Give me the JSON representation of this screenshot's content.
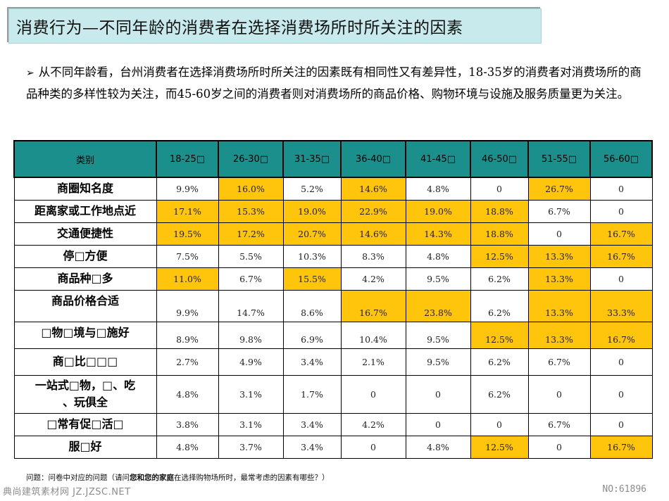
{
  "title": "消费行为—不同年龄的消费者在选择消费场所时所关注的因素",
  "summary": {
    "bullet": "➢",
    "text": "从不同年龄看，台州消费者在选择消费场所时所关注的因素既有相同性又有差异性，18-35岁的消费者对消费场所的商品种类的多样性较为关注，而45-60岁之间的消费者则对消费场所的商品价格、购物环境与设施及服务质量更为关注。"
  },
  "table": {
    "header": {
      "category": "类别",
      "age_groups": [
        "18-25□",
        "26-30□",
        "31-35□",
        "36-40□",
        "41-45□",
        "46-50□",
        "51-55□",
        "56-60□"
      ]
    },
    "rows": [
      {
        "label": "商圈知名度",
        "values": [
          "9.9%",
          "16.0%",
          "5.2%",
          "14.6%",
          "4.8%",
          "0",
          "26.7%",
          "0"
        ],
        "highlight": [
          false,
          true,
          false,
          true,
          false,
          false,
          true,
          false
        ]
      },
      {
        "label": "距离家或工作地点近",
        "values": [
          "17.1%",
          "15.3%",
          "19.0%",
          "22.9%",
          "19.0%",
          "18.8%",
          "6.7%",
          "0"
        ],
        "highlight": [
          true,
          true,
          true,
          true,
          true,
          true,
          false,
          false
        ]
      },
      {
        "label": "交通便捷性",
        "values": [
          "19.5%",
          "17.2%",
          "20.7%",
          "14.6%",
          "14.3%",
          "18.8%",
          "0",
          "16.7%"
        ],
        "highlight": [
          true,
          true,
          true,
          true,
          true,
          true,
          false,
          true
        ]
      },
      {
        "label": "停□方便",
        "values": [
          "7.5%",
          "5.5%",
          "10.3%",
          "8.3%",
          "4.8%",
          "12.5%",
          "13.3%",
          "16.7%"
        ],
        "highlight": [
          false,
          false,
          false,
          false,
          false,
          true,
          true,
          true
        ]
      },
      {
        "label": "商品种□多",
        "values": [
          "11.0%",
          "6.7%",
          "15.5%",
          "4.2%",
          "9.5%",
          "6.2%",
          "13.3%",
          "0"
        ],
        "highlight": [
          true,
          false,
          true,
          false,
          false,
          false,
          true,
          false
        ]
      },
      {
        "label": "商品价格合适",
        "values": [
          "9.9%",
          "14.7%",
          "8.6%",
          "16.7%",
          "23.8%",
          "6.2%",
          "13.3%",
          "33.3%"
        ],
        "highlight": [
          false,
          false,
          false,
          true,
          true,
          false,
          true,
          true
        ]
      },
      {
        "label": "□物□境与□施好",
        "values": [
          "8.9%",
          "9.8%",
          "6.9%",
          "10.4%",
          "9.5%",
          "12.5%",
          "13.3%",
          "16.7%"
        ],
        "highlight": [
          false,
          false,
          false,
          false,
          false,
          true,
          true,
          true
        ]
      },
      {
        "label": "商□比□□□",
        "values": [
          "2.7%",
          "4.9%",
          "3.4%",
          "2.1%",
          "9.5%",
          "6.2%",
          "6.7%",
          "0"
        ],
        "highlight": [
          false,
          false,
          false,
          false,
          false,
          false,
          false,
          false
        ]
      },
      {
        "label": "一站式□物，□、吃、玩俱全",
        "label_lines": [
          "一站式□物，□、吃",
          "、玩俱全"
        ],
        "values": [
          "4.8%",
          "3.1%",
          "1.7%",
          "0",
          "0",
          "6.2%",
          "0",
          "0"
        ],
        "highlight": [
          false,
          false,
          false,
          false,
          false,
          false,
          false,
          false
        ]
      },
      {
        "label": "□常有促□活□",
        "values": [
          "3.8%",
          "3.1%",
          "3.4%",
          "4.2%",
          "0",
          "0",
          "6.7%",
          "0"
        ],
        "highlight": [
          false,
          false,
          false,
          false,
          false,
          false,
          false,
          false
        ]
      },
      {
        "label": "服□好",
        "values": [
          "4.8%",
          "3.7%",
          "3.4%",
          "0",
          "4.8%",
          "12.5%",
          "0",
          "16.7%"
        ],
        "highlight": [
          false,
          false,
          false,
          false,
          false,
          true,
          false,
          true
        ]
      }
    ]
  },
  "footnote": {
    "prefix": "问题：问卷中对应的问题（请问",
    "bold": "您和您的家庭",
    "suffix": "在选择购物场所时，最常考虑的因素有哪些？）"
  },
  "watermark": {
    "left": "典尚建筑素材网 JZ.JZSC.NET",
    "right": "NO:61896"
  },
  "colors": {
    "title_bg": "#c8eaec",
    "header_bg": "#1b8f8c",
    "highlight": "#ffc40c"
  }
}
